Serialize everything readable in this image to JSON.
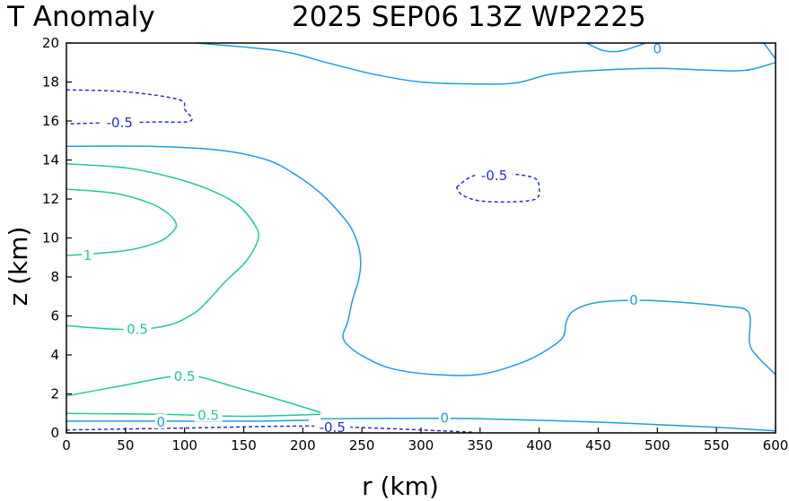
{
  "chart_data": {
    "type": "contour",
    "title": "T Anomaly",
    "subtitle": "2025 SEP06 13Z   WP2225",
    "xlabel": "r (km)",
    "ylabel": "z (km)",
    "xlim": [
      0,
      600
    ],
    "ylim": [
      0,
      20
    ],
    "x_ticks": [
      0,
      50,
      100,
      150,
      200,
      250,
      300,
      350,
      400,
      450,
      500,
      550,
      600
    ],
    "y_ticks": [
      0,
      2,
      4,
      6,
      8,
      10,
      12,
      14,
      16,
      18,
      20
    ],
    "colors": {
      "pos1": "#1fc7a3",
      "pos05": "#1fc7a3",
      "zero": "#1f9de0",
      "neg": "#2233cc"
    },
    "contours": [
      {
        "name": "contour-1-top",
        "level": 1,
        "style": "solid",
        "color": "pos1",
        "points": [
          [
            0,
            12.5
          ],
          [
            40,
            12.3
          ],
          [
            70,
            11.8
          ],
          [
            85,
            11.3
          ],
          [
            93,
            10.7
          ],
          [
            88,
            10.2
          ],
          [
            78,
            9.8
          ],
          [
            55,
            9.4
          ],
          [
            25,
            9.2
          ],
          [
            0,
            9.1
          ]
        ]
      },
      {
        "name": "contour-05-core",
        "level": 0.5,
        "style": "solid",
        "color": "pos05",
        "points": [
          [
            0,
            13.8
          ],
          [
            50,
            13.6
          ],
          [
            90,
            13.1
          ],
          [
            120,
            12.5
          ],
          [
            145,
            11.7
          ],
          [
            160,
            10.6
          ],
          [
            162,
            9.9
          ],
          [
            152,
            8.8
          ],
          [
            135,
            7.8
          ],
          [
            120,
            6.8
          ],
          [
            107,
            6.1
          ],
          [
            85,
            5.5
          ],
          [
            50,
            5.3
          ],
          [
            0,
            5.5
          ]
        ]
      },
      {
        "name": "contour-05-low",
        "level": 0.5,
        "style": "solid",
        "color": "pos05",
        "points": [
          [
            0,
            1.9
          ],
          [
            45,
            2.4
          ],
          [
            90,
            2.9
          ],
          [
            110,
            2.9
          ],
          [
            140,
            2.4
          ],
          [
            180,
            1.7
          ],
          [
            215,
            1.05
          ]
        ]
      },
      {
        "name": "contour-05-surface",
        "level": 0.5,
        "style": "solid",
        "color": "pos05",
        "points": [
          [
            0,
            1.0
          ],
          [
            80,
            0.95
          ],
          [
            150,
            0.85
          ],
          [
            215,
            0.95
          ]
        ]
      },
      {
        "name": "contour-0-main",
        "level": 0,
        "style": "solid",
        "color": "zero",
        "points": [
          [
            0,
            14.7
          ],
          [
            70,
            14.7
          ],
          [
            130,
            14.5
          ],
          [
            170,
            14.0
          ],
          [
            195,
            13.2
          ],
          [
            215,
            12.3
          ],
          [
            228,
            11.5
          ],
          [
            240,
            10.6
          ],
          [
            247,
            9.6
          ],
          [
            249,
            8.7
          ],
          [
            247,
            7.8
          ],
          [
            242,
            6.8
          ],
          [
            238,
            5.7
          ],
          [
            234,
            5.0
          ],
          [
            238,
            4.5
          ],
          [
            252,
            3.9
          ],
          [
            275,
            3.3
          ],
          [
            310,
            3.0
          ],
          [
            350,
            3.0
          ],
          [
            385,
            3.6
          ],
          [
            405,
            4.2
          ],
          [
            420,
            4.9
          ],
          [
            423,
            5.7
          ],
          [
            430,
            6.3
          ],
          [
            450,
            6.7
          ],
          [
            485,
            6.8
          ],
          [
            520,
            6.7
          ],
          [
            555,
            6.5
          ],
          [
            577,
            6.2
          ],
          [
            578,
            4.6
          ],
          [
            585,
            3.9
          ],
          [
            600,
            3.0
          ]
        ]
      },
      {
        "name": "contour-0-top",
        "level": 0,
        "style": "solid",
        "color": "zero",
        "points": [
          [
            110,
            20.0
          ],
          [
            180,
            19.6
          ],
          [
            220,
            19.0
          ],
          [
            260,
            18.4
          ],
          [
            300,
            18.0
          ],
          [
            345,
            17.9
          ],
          [
            380,
            17.95
          ],
          [
            410,
            18.4
          ],
          [
            450,
            18.6
          ],
          [
            500,
            18.7
          ],
          [
            545,
            18.6
          ],
          [
            575,
            18.6
          ],
          [
            600,
            19.0
          ]
        ]
      },
      {
        "name": "contour-0-cap",
        "level": 0,
        "style": "solid",
        "color": "zero",
        "points": [
          [
            440,
            20.0
          ],
          [
            455,
            19.6
          ],
          [
            470,
            19.6
          ],
          [
            490,
            20.0
          ]
        ]
      },
      {
        "name": "contour-0-cap-right",
        "level": 0,
        "style": "solid",
        "color": "zero",
        "points": [
          [
            590,
            20.0
          ],
          [
            600,
            19.2
          ]
        ]
      },
      {
        "name": "contour-0-surface",
        "level": 0,
        "style": "solid",
        "color": "zero",
        "points": [
          [
            0,
            0.6
          ],
          [
            80,
            0.6
          ],
          [
            160,
            0.6
          ],
          [
            205,
            0.65
          ]
        ]
      },
      {
        "name": "contour-0-surface-right",
        "level": 0,
        "style": "solid",
        "color": "zero",
        "points": [
          [
            215,
            0.72
          ],
          [
            300,
            0.75
          ],
          [
            350,
            0.72
          ],
          [
            450,
            0.55
          ],
          [
            545,
            0.3
          ],
          [
            600,
            0.1
          ]
        ]
      },
      {
        "name": "contour-neg05-top",
        "level": -0.5,
        "style": "dashed",
        "color": "neg",
        "points": [
          [
            0,
            17.6
          ],
          [
            50,
            17.5
          ],
          [
            95,
            17.1
          ],
          [
            100,
            16.6
          ],
          [
            105,
            16.0
          ],
          [
            75,
            15.95
          ],
          [
            30,
            15.9
          ],
          [
            0,
            15.85
          ]
        ]
      },
      {
        "name": "contour-neg05-mid",
        "level": -0.5,
        "style": "dashed",
        "color": "neg",
        "points": [
          [
            330,
            12.6
          ],
          [
            345,
            13.2
          ],
          [
            370,
            13.3
          ],
          [
            395,
            13.1
          ],
          [
            400,
            12.6
          ],
          [
            397,
            12.0
          ],
          [
            375,
            11.85
          ],
          [
            350,
            11.9
          ],
          [
            335,
            12.2
          ],
          [
            330,
            12.6
          ]
        ]
      },
      {
        "name": "contour-neg05-surface",
        "level": -0.5,
        "style": "dashed",
        "color": "neg",
        "points": [
          [
            0,
            0.15
          ],
          [
            100,
            0.25
          ],
          [
            200,
            0.35
          ],
          [
            260,
            0.25
          ],
          [
            300,
            0.15
          ],
          [
            345,
            0.03
          ]
        ]
      }
    ],
    "contour_labels": [
      {
        "text": "-0.5",
        "r": 45,
        "z": 15.9,
        "color": "neg"
      },
      {
        "text": "-0.5",
        "r": 362,
        "z": 13.2,
        "color": "neg"
      },
      {
        "text": "1",
        "r": 18,
        "z": 9.1,
        "color": "pos1"
      },
      {
        "text": "0.5",
        "r": 60,
        "z": 5.3,
        "color": "pos05"
      },
      {
        "text": "0.5",
        "r": 100,
        "z": 2.9,
        "color": "pos05"
      },
      {
        "text": "0.5",
        "r": 120,
        "z": 0.9,
        "color": "pos05"
      },
      {
        "text": "0",
        "r": 80,
        "z": 0.55,
        "color": "zero"
      },
      {
        "text": "-0.5",
        "r": 225,
        "z": 0.28,
        "color": "neg"
      },
      {
        "text": "0",
        "r": 320,
        "z": 0.75,
        "color": "zero"
      },
      {
        "text": "0",
        "r": 480,
        "z": 6.8,
        "color": "zero"
      },
      {
        "text": "0",
        "r": 500,
        "z": 19.7,
        "color": "zero"
      }
    ]
  }
}
